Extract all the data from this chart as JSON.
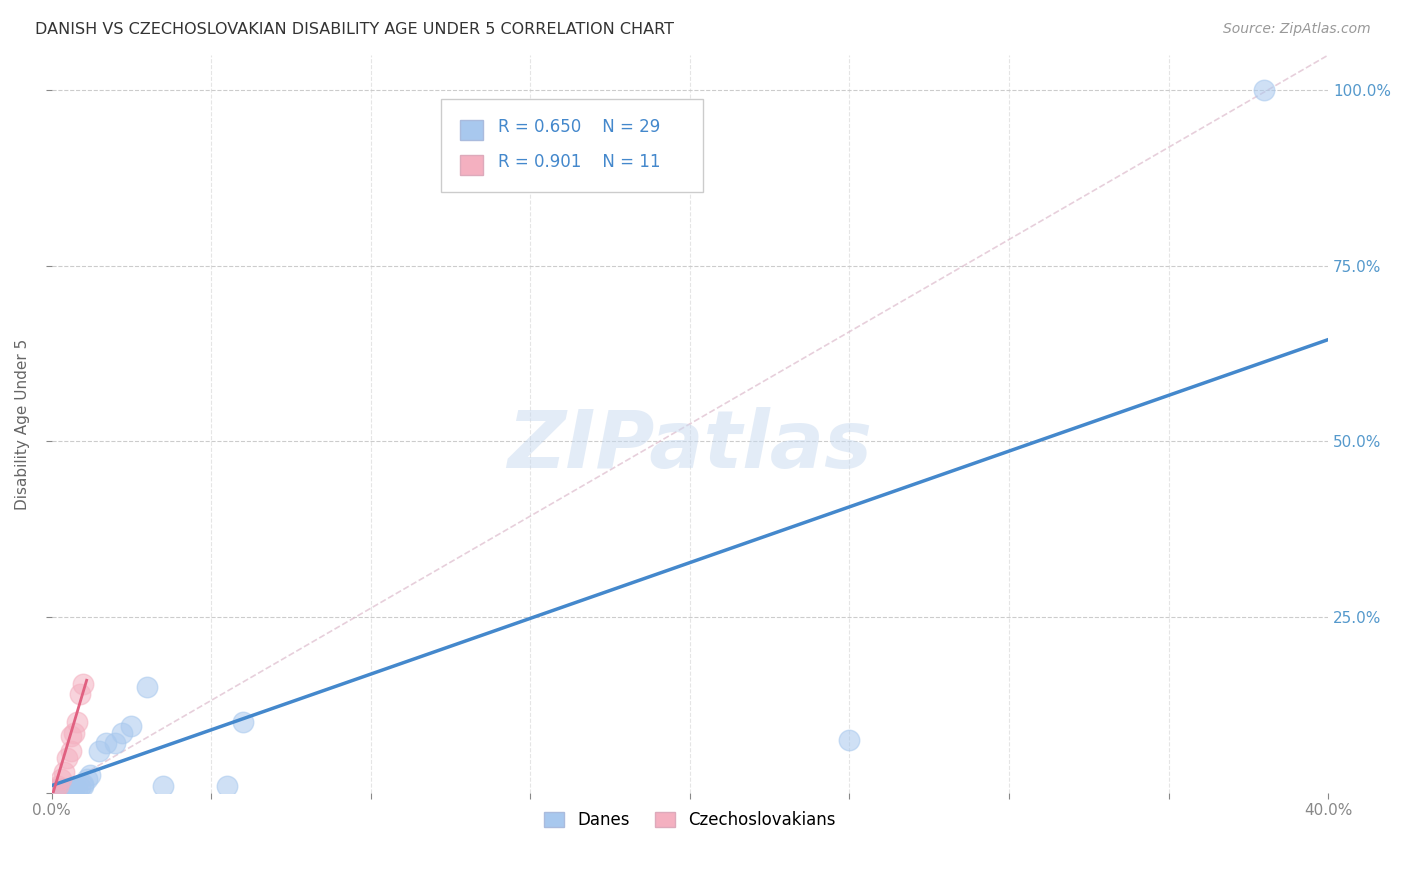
{
  "title": "DANISH VS CZECHOSLOVAKIAN DISABILITY AGE UNDER 5 CORRELATION CHART",
  "source": "Source: ZipAtlas.com",
  "ylabel": "Disability Age Under 5",
  "xlim": [
    0.0,
    0.4
  ],
  "ylim": [
    0.0,
    1.05
  ],
  "background_color": "#ffffff",
  "grid_color": "#cccccc",
  "watermark_text": "ZIPatlas",
  "legend": {
    "dane_R": "0.650",
    "dane_N": "29",
    "czech_R": "0.901",
    "czech_N": "11"
  },
  "dane_color": "#a8c8ee",
  "czech_color": "#f4b0c0",
  "dane_line_color": "#4488cc",
  "czech_line_color": "#e06080",
  "diag_line_color": "#ddbbcc",
  "danish_x": [
    0.001,
    0.002,
    0.002,
    0.003,
    0.003,
    0.003,
    0.004,
    0.004,
    0.005,
    0.005,
    0.006,
    0.007,
    0.008,
    0.009,
    0.01,
    0.01,
    0.011,
    0.012,
    0.015,
    0.017,
    0.02,
    0.022,
    0.025,
    0.03,
    0.035,
    0.055,
    0.06,
    0.25,
    0.38
  ],
  "danish_y": [
    0.005,
    0.005,
    0.005,
    0.005,
    0.005,
    0.005,
    0.005,
    0.005,
    0.005,
    0.005,
    0.005,
    0.005,
    0.005,
    0.008,
    0.01,
    0.012,
    0.02,
    0.025,
    0.06,
    0.07,
    0.07,
    0.085,
    0.095,
    0.15,
    0.01,
    0.01,
    0.1,
    0.075,
    1.0
  ],
  "czech_x": [
    0.001,
    0.002,
    0.003,
    0.004,
    0.005,
    0.006,
    0.006,
    0.007,
    0.008,
    0.009,
    0.01
  ],
  "czech_y": [
    0.005,
    0.01,
    0.02,
    0.03,
    0.05,
    0.06,
    0.08,
    0.085,
    0.1,
    0.14,
    0.155
  ],
  "dane_line_x0": 0.0,
  "dane_line_x1": 0.4,
  "dane_line_y0": 0.01,
  "dane_line_y1": 0.645,
  "czech_line_x0": 0.0005,
  "czech_line_x1": 0.011,
  "czech_line_y0": 0.0,
  "czech_line_y1": 0.16
}
